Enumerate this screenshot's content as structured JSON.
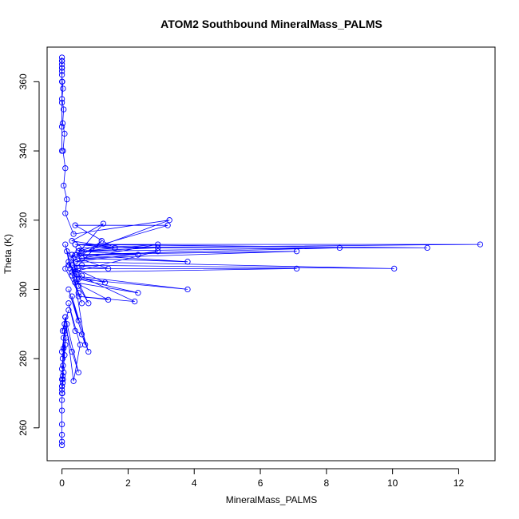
{
  "chart_data": {
    "type": "line",
    "title": "ATOM2 Southbound MineralMass_PALMS",
    "xlabel": "MineralMass_PALMS",
    "ylabel": "Theta (K)",
    "xlim": [
      -0.45,
      13.1
    ],
    "ylim": [
      250.5,
      370
    ],
    "xticks": [
      0,
      2,
      4,
      6,
      8,
      10,
      12
    ],
    "yticks": [
      260,
      280,
      300,
      320,
      340,
      360
    ],
    "grid": false,
    "legend": "none",
    "series": [
      {
        "color": "#0000ff",
        "marker": "open-circle",
        "x": [
          0,
          0,
          0,
          0,
          0,
          0,
          0.01,
          0,
          0.02,
          0,
          0.03,
          0,
          0.05,
          0,
          0.03,
          0,
          0.08,
          0.02,
          0.1,
          0,
          0.05,
          0.12,
          0.02,
          0.08,
          0,
          0.15,
          0.05,
          0.1,
          0.02,
          0.2,
          0.08,
          0.3,
          0.5,
          0.1,
          0.35,
          0.55,
          0.2,
          0.4,
          0.6,
          0.8,
          0.3,
          0.5,
          0.2,
          0.7,
          0.4,
          0.6,
          0.3,
          0.5,
          0.1,
          0.2,
          0.8,
          0.5,
          0.3,
          0.4,
          0.6,
          0.45,
          0.35,
          0.15,
          0.25,
          0.1,
          0.4,
          0.6,
          0.2,
          1.2,
          0.3,
          2.2,
          0.5,
          1.4,
          0.4,
          2.3,
          0.5,
          3.8,
          0.3,
          1.3,
          0.4,
          7.1,
          0.3,
          2.9,
          0.4,
          10.05,
          0.3,
          1.4,
          0.5,
          3.8,
          0.4,
          2.3,
          0.6,
          1.6,
          0.4,
          12.65,
          0.5,
          11.05,
          0.4,
          2.9,
          0.5,
          8.4,
          0.3,
          7.1,
          0.6,
          2.9,
          0.5,
          3.2,
          0.4,
          1.6,
          0.3,
          1.25,
          0.45,
          3.25,
          0.35,
          0.1,
          0.15,
          0.05,
          0.1,
          0.03,
          0.08,
          0.02,
          0.05,
          0,
          0.03,
          0.01,
          0,
          0,
          0,
          0,
          0,
          0,
          0,
          0,
          0,
          0,
          0,
          0
        ],
        "y": [
          255,
          256,
          258,
          261,
          265,
          268,
          270,
          272,
          273,
          270,
          274,
          271,
          276,
          272,
          278,
          274,
          281,
          275,
          284,
          277,
          283,
          286,
          280,
          288,
          282,
          290,
          286,
          292,
          288,
          294,
          290,
          282,
          276,
          292,
          273.5,
          284,
          296,
          288,
          287,
          282,
          298,
          291,
          300,
          284,
          302,
          296,
          304,
          299,
          306,
          308,
          296,
          301,
          310,
          305,
          307,
          303,
          309,
          311,
          306,
          313,
          302,
          304,
          307,
          314,
          305,
          296.5,
          298,
          297,
          302,
          299,
          303,
          300,
          304,
          302,
          306,
          306,
          305,
          311,
          308,
          306,
          307,
          306,
          309,
          308,
          310,
          310,
          311,
          312,
          313,
          313,
          312,
          312,
          313,
          312,
          311,
          312,
          310,
          311,
          309,
          313,
          311,
          318.5,
          318.5,
          312,
          314,
          319,
          310,
          320,
          316,
          322,
          326,
          330,
          335,
          340,
          345,
          348,
          352,
          355,
          358,
          360,
          362,
          363,
          364,
          365,
          366,
          367,
          366,
          364,
          360,
          354,
          347,
          340
        ]
      }
    ]
  }
}
